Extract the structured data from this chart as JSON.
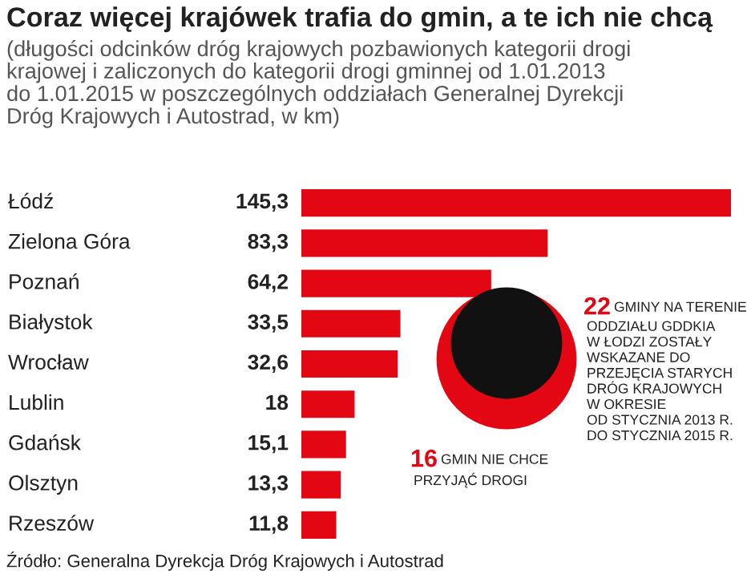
{
  "chart_data": {
    "type": "bar",
    "orientation": "horizontal",
    "title": "Coraz więcej krajówek trafia do gmin, a te ich nie chcą",
    "subtitle": "(długości odcinków dróg krajowych pozbawionych kategorii drogi\nkrajowej i zaliczonych do kategorii drogi gminnej od 1.01.2013\ndo 1.01.2015 w poszczególnych oddziałach Generalnej Dyrekcji\nDróg Krajowych i Autostrad, w km)",
    "categories": [
      "Łódź",
      "Zielona Góra",
      "Poznań",
      "Białystok",
      "Wrocław",
      "Lublin",
      "Gdańsk",
      "Olsztyn",
      "Rzeszów"
    ],
    "values": [
      145.3,
      83.3,
      64.2,
      33.5,
      32.6,
      18,
      15.1,
      13.3,
      11.8
    ],
    "value_labels": [
      "145,3",
      "83,3",
      "64,2",
      "33,5",
      "32,6",
      "18",
      "15,1",
      "13,3",
      "11,8"
    ],
    "color": "#e30613",
    "annotations": [
      "22 GMINY NA TERENIE\nODDZIAŁU GDDKIA\nW ŁODZI ZOSTAŁY\nWSKAZANE DO\nPRZEJĘCIA STARYCH\nDRÓG KRAJOWYCH\nW OKRESIE\nOD STYCZNIA 2013 R.\nDO STYCZNIA 2015 R.",
      "16 GMIN NIE CHCE\nPRZYJĄĆ DROGI",
      "Źródło: Generalna Dyrekcja Dróg Krajowych i Autostrad"
    ]
  }
}
